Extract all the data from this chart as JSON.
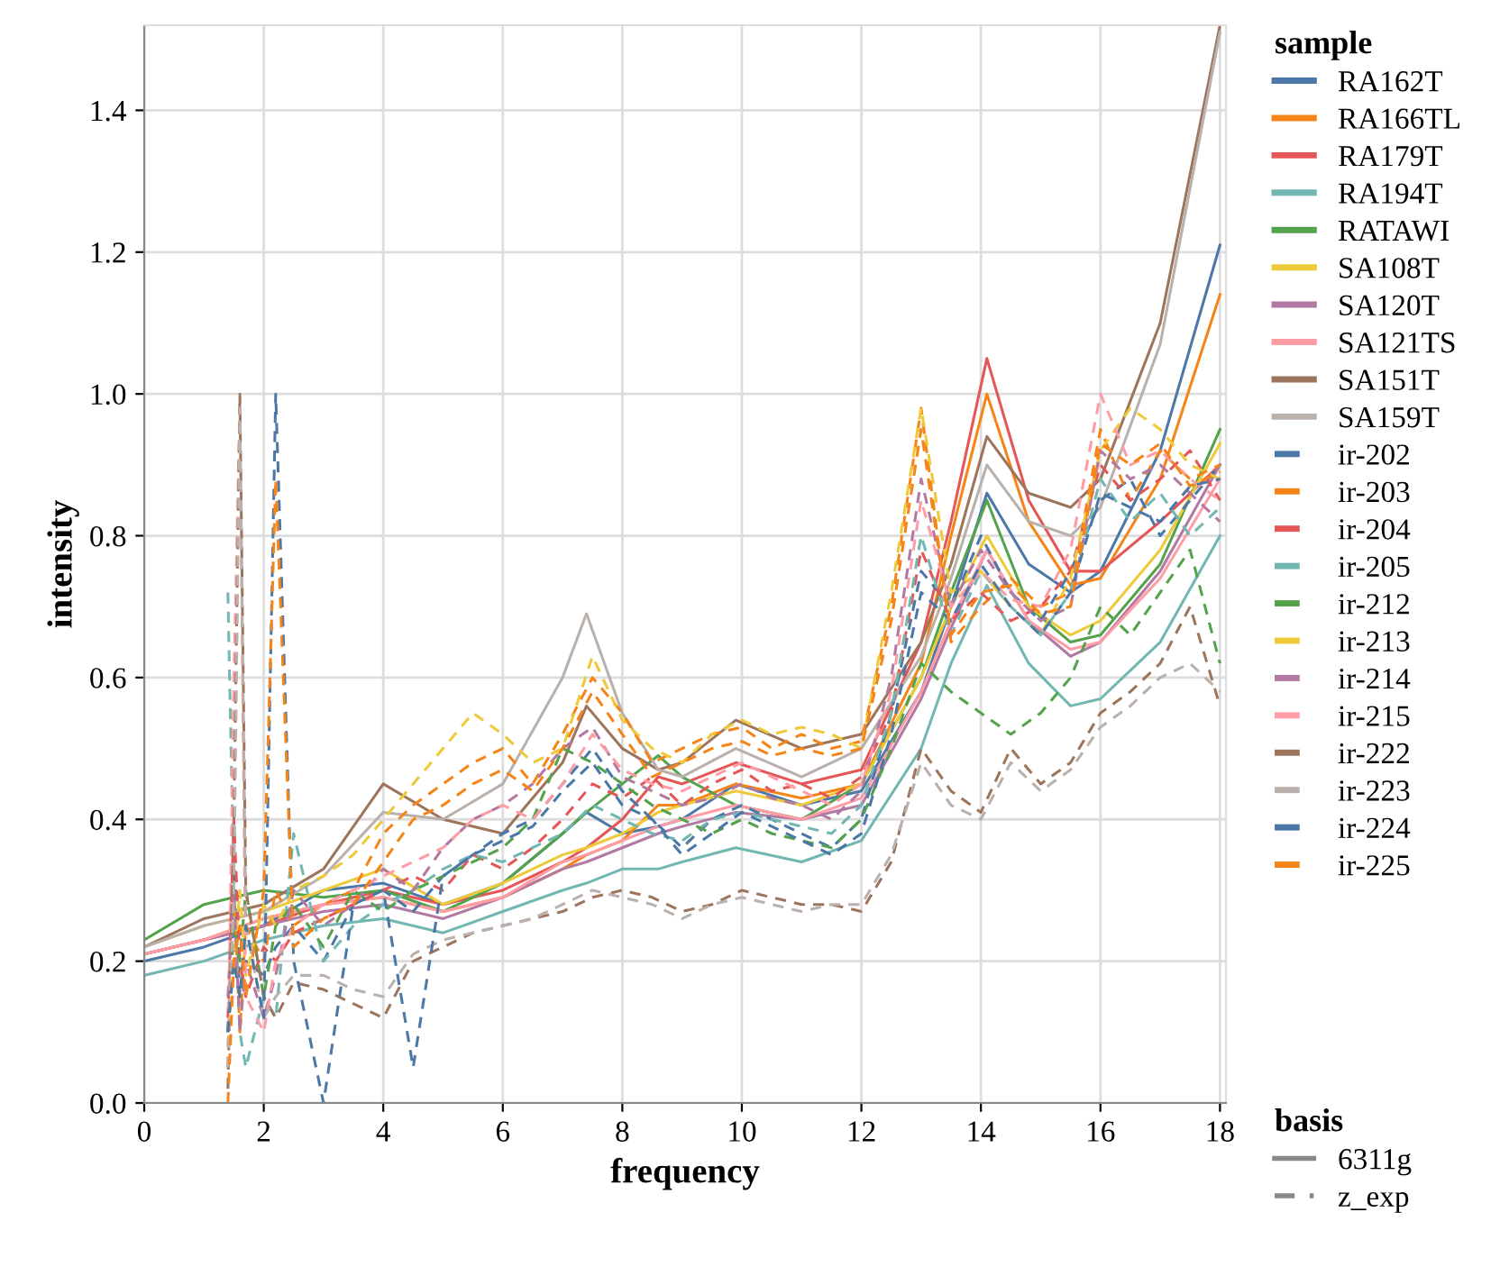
{
  "chart_data": {
    "type": "line",
    "xlabel": "frequency",
    "ylabel": "intensity",
    "legend_title": "sample",
    "legend": "right",
    "grid": true,
    "xlim": [
      0,
      18.1
    ],
    "ylim": [
      0,
      1.52
    ],
    "xticks": [
      0,
      2,
      4,
      6,
      8,
      10,
      12,
      14,
      16,
      18
    ],
    "yticks": [
      {
        "value": 0,
        "label": "0.0"
      },
      {
        "value": 0.2,
        "label": "0.2"
      },
      {
        "value": 0.4,
        "label": "0.4"
      },
      {
        "value": 0.6,
        "label": "0.6"
      },
      {
        "value": 0.8,
        "label": "0.8"
      },
      {
        "value": 1.0,
        "label": "1.0"
      },
      {
        "value": 1.2,
        "label": "1.2"
      },
      {
        "value": 1.4,
        "label": "1.4"
      }
    ],
    "annotations": [
      "basis",
      "6311g",
      "z_exp"
    ],
    "x": [
      0,
      1,
      2,
      3,
      4,
      5,
      6,
      7,
      7.4,
      8,
      8.6,
      9,
      9.9,
      11,
      12,
      13,
      13.5,
      14.1,
      14.8,
      15.5,
      16,
      17,
      18
    ],
    "series": [
      {
        "name": "RA162T",
        "color": "#4c78a8",
        "line_style": "solid",
        "values": [
          0.2,
          0.22,
          0.25,
          0.3,
          0.31,
          0.28,
          0.31,
          0.38,
          0.41,
          0.38,
          0.39,
          0.4,
          0.45,
          0.42,
          0.44,
          0.58,
          0.7,
          0.86,
          0.76,
          0.72,
          0.75,
          0.92,
          1.21
        ]
      },
      {
        "name": "RA166TL",
        "color": "#f58518",
        "line_style": "solid",
        "values": [
          0.21,
          0.23,
          0.26,
          0.28,
          0.29,
          0.27,
          0.29,
          0.33,
          0.35,
          0.37,
          0.42,
          0.42,
          0.45,
          0.43,
          0.45,
          0.62,
          0.8,
          1.0,
          0.82,
          0.73,
          0.74,
          0.88,
          1.14
        ]
      },
      {
        "name": "RA179T",
        "color": "#e45756",
        "line_style": "solid",
        "values": [
          0.21,
          0.23,
          0.25,
          0.28,
          0.3,
          0.28,
          0.3,
          0.34,
          0.36,
          0.4,
          0.46,
          0.45,
          0.48,
          0.45,
          0.47,
          0.65,
          0.82,
          1.05,
          0.85,
          0.75,
          0.75,
          0.82,
          0.9
        ]
      },
      {
        "name": "RA194T",
        "color": "#72b7b2",
        "line_style": "solid",
        "values": [
          0.18,
          0.2,
          0.23,
          0.25,
          0.26,
          0.24,
          0.27,
          0.3,
          0.31,
          0.33,
          0.33,
          0.34,
          0.36,
          0.34,
          0.37,
          0.5,
          0.62,
          0.73,
          0.62,
          0.56,
          0.57,
          0.65,
          0.8
        ]
      },
      {
        "name": "RATAWI",
        "color": "#54a24b",
        "line_style": "solid",
        "values": [
          0.23,
          0.28,
          0.3,
          0.29,
          0.3,
          0.27,
          0.31,
          0.38,
          0.41,
          0.45,
          0.49,
          0.46,
          0.42,
          0.4,
          0.45,
          0.6,
          0.72,
          0.85,
          0.7,
          0.65,
          0.66,
          0.76,
          0.95
        ]
      },
      {
        "name": "SA108T",
        "color": "#eeca3b",
        "line_style": "solid",
        "values": [
          0.22,
          0.25,
          0.27,
          0.3,
          0.33,
          0.28,
          0.31,
          0.35,
          0.36,
          0.38,
          0.41,
          0.42,
          0.44,
          0.42,
          0.45,
          0.6,
          0.7,
          0.8,
          0.7,
          0.66,
          0.68,
          0.78,
          0.93
        ]
      },
      {
        "name": "SA120T",
        "color": "#b279a2",
        "line_style": "solid",
        "values": [
          0.21,
          0.23,
          0.25,
          0.27,
          0.28,
          0.26,
          0.29,
          0.33,
          0.34,
          0.36,
          0.38,
          0.39,
          0.41,
          0.4,
          0.42,
          0.57,
          0.67,
          0.78,
          0.68,
          0.63,
          0.65,
          0.75,
          0.9
        ]
      },
      {
        "name": "SA121TS",
        "color": "#ff9da6",
        "line_style": "solid",
        "values": [
          0.21,
          0.23,
          0.26,
          0.28,
          0.29,
          0.27,
          0.29,
          0.34,
          0.35,
          0.37,
          0.39,
          0.4,
          0.42,
          0.4,
          0.43,
          0.58,
          0.68,
          0.78,
          0.68,
          0.64,
          0.65,
          0.74,
          0.88
        ]
      },
      {
        "name": "SA151T",
        "color": "#9d755d",
        "line_style": "solid",
        "values": [
          0.22,
          0.26,
          0.28,
          0.33,
          0.45,
          0.4,
          0.38,
          0.48,
          0.56,
          0.5,
          0.47,
          0.48,
          0.54,
          0.5,
          0.52,
          0.65,
          0.76,
          0.94,
          0.86,
          0.84,
          0.88,
          1.1,
          1.52
        ]
      },
      {
        "name": "SA159T",
        "color": "#bab0ac",
        "line_style": "solid",
        "values": [
          0.22,
          0.25,
          0.27,
          0.32,
          0.41,
          0.4,
          0.45,
          0.6,
          0.69,
          0.55,
          0.47,
          0.46,
          0.5,
          0.46,
          0.5,
          0.63,
          0.74,
          0.9,
          0.82,
          0.8,
          0.84,
          1.07,
          1.51
        ]
      },
      {
        "name": "ir-202",
        "color": "#4c78a8",
        "line_style": "dashed",
        "x": [
          1.4,
          1.5,
          1.6,
          1.7,
          2,
          2.2,
          2.5,
          3,
          3.5,
          4,
          4.5,
          5,
          5.5,
          6,
          6.5,
          7,
          7.5,
          8,
          8.5,
          9,
          9.5,
          10,
          10.5,
          11,
          11.5,
          12,
          12.5,
          13,
          13.5,
          14,
          14.5,
          15,
          15.5,
          16,
          16.5,
          17,
          17.5,
          18
        ],
        "values": [
          0.1,
          0.35,
          0.15,
          0.2,
          0.18,
          0.22,
          0.25,
          0.2,
          0.28,
          0.3,
          0.27,
          0.32,
          0.35,
          0.38,
          0.4,
          0.45,
          0.5,
          0.44,
          0.4,
          0.36,
          0.4,
          0.42,
          0.4,
          0.38,
          0.36,
          0.4,
          0.55,
          0.75,
          0.7,
          0.8,
          0.72,
          0.68,
          0.75,
          0.85,
          0.88,
          0.8,
          0.85,
          0.9
        ]
      },
      {
        "name": "ir-203",
        "color": "#f58518",
        "line_style": "dashed",
        "x": [
          1.4,
          1.5,
          1.6,
          1.7,
          2,
          2.2,
          2.5,
          3,
          3.5,
          4,
          4.5,
          5,
          5.5,
          6,
          6.5,
          7,
          7.5,
          8,
          8.5,
          9,
          9.5,
          10,
          10.5,
          11,
          11.5,
          12,
          12.5,
          13,
          13.5,
          14,
          14.5,
          15,
          15.5,
          16,
          16.5,
          17,
          17.5,
          18
        ],
        "values": [
          0.05,
          0.3,
          0.1,
          0.25,
          0.2,
          0.3,
          0.25,
          0.28,
          0.3,
          0.38,
          0.42,
          0.45,
          0.48,
          0.5,
          0.45,
          0.52,
          0.6,
          0.55,
          0.48,
          0.5,
          0.52,
          0.53,
          0.5,
          0.52,
          0.5,
          0.51,
          0.7,
          0.98,
          0.65,
          0.7,
          0.74,
          0.7,
          0.72,
          0.95,
          0.85,
          0.92,
          0.88,
          0.9
        ]
      },
      {
        "name": "ir-204",
        "color": "#e45756",
        "line_style": "dashed",
        "x": [
          1.4,
          1.5,
          1.6,
          1.7,
          2,
          2.2,
          2.5,
          3,
          3.5,
          4,
          4.5,
          5,
          5.5,
          6,
          6.5,
          7,
          7.5,
          8,
          8.5,
          9,
          9.5,
          10,
          10.5,
          11,
          11.5,
          12,
          12.5,
          13,
          13.5,
          14,
          14.5,
          15,
          15.5,
          16,
          16.5,
          17,
          17.5,
          18
        ],
        "values": [
          0.12,
          0.4,
          0.2,
          0.15,
          0.22,
          0.2,
          0.24,
          0.26,
          0.28,
          0.3,
          0.32,
          0.3,
          0.35,
          0.33,
          0.36,
          0.4,
          0.45,
          0.43,
          0.46,
          0.42,
          0.45,
          0.47,
          0.44,
          0.45,
          0.43,
          0.46,
          0.55,
          0.78,
          0.68,
          0.72,
          0.68,
          0.7,
          0.75,
          0.9,
          0.85,
          0.88,
          0.92,
          0.85
        ]
      },
      {
        "name": "ir-205",
        "color": "#72b7b2",
        "line_style": "dashed",
        "x": [
          1.4,
          1.5,
          1.6,
          1.7,
          2,
          2.2,
          2.5,
          3,
          3.5,
          4,
          4.5,
          5,
          5.5,
          6,
          6.5,
          7,
          7.5,
          8,
          8.5,
          9,
          9.5,
          10,
          10.5,
          11,
          11.5,
          12,
          12.5,
          13,
          13.5,
          14,
          14.5,
          15,
          15.5,
          16,
          16.5,
          17,
          17.5,
          18
        ],
        "values": [
          0.72,
          0.3,
          0.1,
          0.05,
          0.15,
          0.12,
          0.38,
          0.2,
          0.25,
          0.28,
          0.3,
          0.33,
          0.35,
          0.34,
          0.36,
          0.38,
          0.42,
          0.4,
          0.38,
          0.37,
          0.4,
          0.41,
          0.4,
          0.39,
          0.38,
          0.42,
          0.55,
          0.8,
          0.66,
          0.75,
          0.7,
          0.66,
          0.72,
          0.88,
          0.82,
          0.86,
          0.8,
          0.84
        ]
      },
      {
        "name": "ir-212",
        "color": "#54a24b",
        "line_style": "dashed",
        "x": [
          1.4,
          1.5,
          1.6,
          1.7,
          2,
          2.2,
          2.5,
          3,
          3.5,
          4,
          4.5,
          5,
          5.5,
          6,
          6.5,
          7,
          7.5,
          8,
          8.5,
          9,
          9.5,
          10,
          10.5,
          11,
          11.5,
          12,
          12.5,
          13,
          13.5,
          14,
          14.5,
          15,
          15.5,
          16,
          16.5,
          17,
          17.5,
          18
        ],
        "values": [
          0.1,
          0.25,
          0.2,
          0.3,
          0.15,
          0.25,
          0.28,
          0.22,
          0.3,
          0.27,
          0.3,
          0.32,
          0.34,
          0.36,
          0.4,
          0.5,
          0.48,
          0.45,
          0.42,
          0.4,
          0.38,
          0.4,
          0.38,
          0.37,
          0.36,
          0.4,
          0.5,
          0.62,
          0.58,
          0.55,
          0.52,
          0.55,
          0.6,
          0.7,
          0.66,
          0.72,
          0.78,
          0.62
        ]
      },
      {
        "name": "ir-213",
        "color": "#eeca3b",
        "line_style": "dashed",
        "x": [
          1.4,
          1.5,
          1.6,
          1.7,
          2,
          2.2,
          2.5,
          3,
          3.5,
          4,
          4.5,
          5,
          5.5,
          6,
          6.5,
          7,
          7.5,
          8,
          8.5,
          9,
          9.5,
          10,
          10.5,
          11,
          11.5,
          12,
          12.5,
          13,
          13.5,
          14,
          14.5,
          15,
          15.5,
          16,
          16.5,
          17,
          17.5,
          18
        ],
        "values": [
          0.08,
          0.2,
          0.3,
          0.18,
          0.28,
          0.25,
          0.3,
          0.32,
          0.35,
          0.4,
          0.45,
          0.5,
          0.55,
          0.52,
          0.48,
          0.5,
          0.63,
          0.54,
          0.5,
          0.48,
          0.52,
          0.54,
          0.52,
          0.53,
          0.52,
          0.5,
          0.72,
          0.98,
          0.72,
          0.75,
          0.7,
          0.66,
          0.74,
          0.92,
          0.98,
          0.95,
          0.9,
          0.88
        ]
      },
      {
        "name": "ir-214",
        "color": "#b279a2",
        "line_style": "dashed",
        "x": [
          1.4,
          1.5,
          1.6,
          1.7,
          2,
          2.2,
          2.5,
          3,
          3.5,
          4,
          4.5,
          5,
          5.5,
          6,
          6.5,
          7,
          7.5,
          8,
          8.5,
          9,
          9.5,
          10,
          10.5,
          11,
          11.5,
          12,
          12.5,
          13,
          13.5,
          14,
          14.5,
          15,
          15.5,
          16,
          16.5,
          17,
          17.5,
          18
        ],
        "values": [
          0.15,
          0.3,
          0.1,
          0.2,
          0.12,
          0.18,
          0.3,
          0.25,
          0.28,
          0.33,
          0.3,
          0.36,
          0.4,
          0.42,
          0.45,
          0.5,
          0.53,
          0.46,
          0.44,
          0.42,
          0.43,
          0.45,
          0.43,
          0.42,
          0.4,
          0.44,
          0.6,
          0.88,
          0.7,
          0.78,
          0.72,
          0.68,
          0.7,
          0.92,
          0.88,
          0.9,
          0.86,
          0.82
        ]
      },
      {
        "name": "ir-215",
        "color": "#ff9da6",
        "line_style": "dashed",
        "x": [
          1.4,
          1.5,
          1.6,
          1.7,
          2,
          2.2,
          2.5,
          3,
          3.5,
          4,
          4.5,
          5,
          5.5,
          6,
          6.5,
          7,
          7.5,
          8,
          8.5,
          9,
          9.5,
          10,
          10.5,
          11,
          11.5,
          12,
          12.5,
          13,
          13.5,
          14,
          14.5,
          15,
          15.5,
          16,
          16.5,
          17,
          17.5,
          18
        ],
        "values": [
          0.05,
          0.6,
          0.98,
          0.15,
          0.1,
          0.2,
          0.25,
          0.28,
          0.3,
          0.32,
          0.34,
          0.36,
          0.4,
          0.42,
          0.4,
          0.45,
          0.52,
          0.47,
          0.45,
          0.44,
          0.46,
          0.48,
          0.46,
          0.44,
          0.42,
          0.45,
          0.58,
          0.85,
          0.7,
          0.75,
          0.71,
          0.7,
          0.78,
          1.0,
          0.9,
          0.92,
          0.88,
          0.85
        ]
      },
      {
        "name": "ir-222",
        "color": "#9d755d",
        "line_style": "dashed",
        "x": [
          1.4,
          1.5,
          1.6,
          1.7,
          2,
          2.2,
          2.5,
          3,
          3.5,
          4,
          4.5,
          5,
          5.5,
          6,
          6.5,
          7,
          7.5,
          8,
          8.5,
          9,
          9.5,
          10,
          10.5,
          11,
          11.5,
          12,
          12.5,
          13,
          13.5,
          14,
          14.5,
          15,
          15.5,
          16,
          16.5,
          17,
          17.5,
          18
        ],
        "values": [
          0.02,
          0.4,
          1.0,
          0.3,
          0.15,
          0.12,
          0.17,
          0.16,
          0.14,
          0.12,
          0.2,
          0.22,
          0.24,
          0.25,
          0.26,
          0.27,
          0.29,
          0.3,
          0.29,
          0.27,
          0.28,
          0.3,
          0.29,
          0.28,
          0.28,
          0.27,
          0.34,
          0.5,
          0.44,
          0.41,
          0.5,
          0.45,
          0.48,
          0.55,
          0.58,
          0.62,
          0.7,
          0.56
        ]
      },
      {
        "name": "ir-223",
        "color": "#bab0ac",
        "line_style": "dashed",
        "x": [
          1.4,
          1.5,
          1.6,
          1.7,
          2,
          2.2,
          2.5,
          3,
          3.5,
          4,
          4.5,
          5,
          5.5,
          6,
          6.5,
          7,
          7.5,
          8,
          8.5,
          9,
          9.5,
          10,
          10.5,
          11,
          11.5,
          12,
          12.5,
          13,
          13.5,
          14,
          14.5,
          15,
          15.5,
          16,
          16.5,
          17,
          17.5,
          18
        ],
        "values": [
          0.05,
          0.3,
          0.98,
          0.25,
          0.12,
          0.15,
          0.18,
          0.18,
          0.16,
          0.15,
          0.21,
          0.23,
          0.24,
          0.25,
          0.26,
          0.28,
          0.3,
          0.29,
          0.28,
          0.26,
          0.28,
          0.29,
          0.28,
          0.27,
          0.28,
          0.28,
          0.35,
          0.48,
          0.42,
          0.4,
          0.48,
          0.44,
          0.47,
          0.53,
          0.56,
          0.6,
          0.62,
          0.58
        ]
      },
      {
        "name": "ir-224",
        "color": "#4c78a8",
        "line_style": "dashed",
        "x": [
          1.4,
          1.5,
          1.6,
          1.7,
          2,
          2.2,
          2.5,
          3,
          3.5,
          4,
          4.5,
          5,
          5.5,
          6,
          6.5,
          7,
          7.5,
          8,
          8.5,
          9,
          9.5,
          10,
          10.5,
          11,
          11.5,
          12,
          12.5,
          13,
          13.5,
          14,
          14.5,
          15,
          15.5,
          16,
          16.5,
          17,
          17.5,
          18
        ],
        "values": [
          0.1,
          0.2,
          0.15,
          0.25,
          0.12,
          1.0,
          0.2,
          0.0,
          0.28,
          0.3,
          0.05,
          0.32,
          0.35,
          0.37,
          0.39,
          0.44,
          0.48,
          0.42,
          0.4,
          0.35,
          0.38,
          0.41,
          0.39,
          0.37,
          0.35,
          0.38,
          0.52,
          0.72,
          0.68,
          0.76,
          0.7,
          0.66,
          0.72,
          0.86,
          0.84,
          0.82,
          0.87,
          0.88
        ]
      },
      {
        "name": "ir-225",
        "color": "#f58518",
        "line_style": "dashed",
        "x": [
          1.4,
          1.5,
          1.6,
          1.7,
          2,
          2.2,
          2.5,
          3,
          3.5,
          4,
          4.5,
          5,
          5.5,
          6,
          6.5,
          7,
          7.5,
          8,
          8.5,
          9,
          9.5,
          10,
          10.5,
          11,
          11.5,
          12,
          12.5,
          13,
          13.5,
          14,
          14.5,
          15,
          15.5,
          16,
          16.5,
          17,
          17.5,
          18
        ],
        "values": [
          0.0,
          0.2,
          0.25,
          0.15,
          0.3,
          0.88,
          0.22,
          0.26,
          0.28,
          0.34,
          0.4,
          0.42,
          0.45,
          0.47,
          0.44,
          0.5,
          0.58,
          0.52,
          0.46,
          0.48,
          0.5,
          0.51,
          0.49,
          0.5,
          0.49,
          0.5,
          0.68,
          0.95,
          0.66,
          0.72,
          0.73,
          0.69,
          0.7,
          0.93,
          0.9,
          0.93,
          0.87,
          0.89
        ]
      }
    ]
  }
}
